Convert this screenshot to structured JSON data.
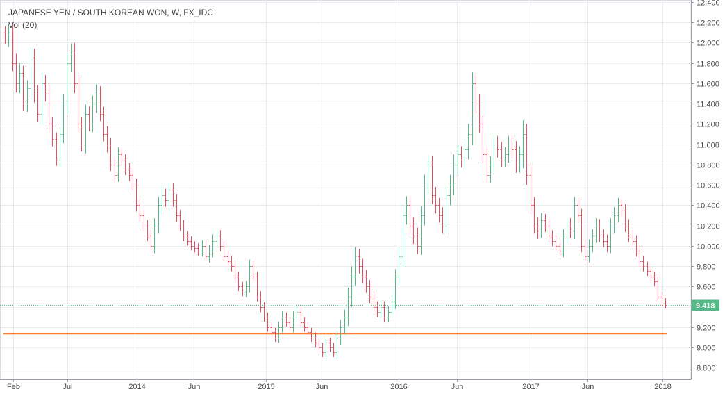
{
  "chart_data": {
    "type": "ohlc",
    "title": "JAPANESE YEN / SOUTH KOREAN WON, W, FX_IDC",
    "indicator_label": "Vol (20)",
    "last_price_label": "9.418",
    "y_ticks": [
      "12.400",
      "12.200",
      "12.000",
      "11.800",
      "11.600",
      "11.400",
      "11.200",
      "11.000",
      "10.800",
      "10.600",
      "10.400",
      "10.200",
      "10.000",
      "9.800",
      "9.600",
      "9.400",
      "9.200",
      "9.000",
      "8.800"
    ],
    "x_ticks": [
      "Feb",
      "Jul",
      "2014",
      "Jun",
      "2015",
      "Jun",
      "2016",
      "Jun",
      "2017",
      "Jun",
      "2018"
    ],
    "ylim": [
      8.7,
      12.42
    ],
    "last_price": 9.418,
    "volume_line_level": 9.14,
    "grid": true,
    "colors": {
      "up": "#53b987",
      "down": "#eb4d5c",
      "volume_line": "#ff7a2f",
      "last_price": "#53b987",
      "grid": "#e8eaf0",
      "axis_text": "#4a4a4a"
    },
    "series": [
      {
        "start": "2013-01-07",
        "values": [
          12.05,
          12.1,
          11.8,
          11.6,
          11.7,
          11.4,
          11.55,
          11.85,
          11.5,
          11.3,
          11.6,
          11.5,
          11.2,
          11.05,
          10.85,
          11.1,
          11.4,
          11.8,
          11.9,
          11.6,
          11.2,
          11.0,
          11.3,
          11.2,
          11.4,
          11.5,
          11.3,
          11.1,
          11.0,
          10.8,
          10.7,
          10.9,
          10.85,
          10.75,
          10.7,
          10.6,
          10.4,
          10.3,
          10.2,
          10.1,
          10.0,
          10.2,
          10.4,
          10.5,
          10.45,
          10.55,
          10.45,
          10.3,
          10.2,
          10.1,
          10.05,
          10.0,
          9.98,
          9.95,
          10.0,
          9.9,
          9.95,
          10.05,
          10.1,
          10.0,
          9.9,
          9.85,
          9.8,
          9.7,
          9.6,
          9.55,
          9.6,
          9.8,
          9.7,
          9.5,
          9.4,
          9.3,
          9.2,
          9.15,
          9.1,
          9.2,
          9.3,
          9.25,
          9.2,
          9.3,
          9.35,
          9.25,
          9.2,
          9.15,
          9.1,
          9.05,
          9.0,
          8.95,
          9.05,
          9.0,
          8.95,
          9.1,
          9.2,
          9.3,
          9.5,
          9.7,
          9.9,
          9.8,
          9.7,
          9.6,
          9.5,
          9.4,
          9.35,
          9.4,
          9.3,
          9.35,
          9.45,
          9.7,
          9.9,
          10.3,
          10.4,
          10.2,
          10.1,
          10.0,
          10.3,
          10.6,
          10.8,
          10.5,
          10.4,
          10.3,
          10.2,
          10.5,
          10.6,
          10.8,
          10.9,
          10.85,
          10.95,
          11.1,
          11.6,
          11.4,
          11.2,
          10.9,
          10.7,
          10.8,
          11.0,
          10.95,
          10.85,
          10.9,
          11.0,
          10.95,
          10.8,
          10.9,
          11.1,
          10.7,
          10.4,
          10.2,
          10.15,
          10.25,
          10.2,
          10.1,
          10.05,
          10.0,
          9.95,
          10.1,
          10.2,
          10.15,
          10.4,
          10.3,
          10.0,
          9.9,
          10.0,
          10.1,
          10.2,
          10.1,
          10.05,
          10.0,
          10.2,
          10.3,
          10.4,
          10.35,
          10.2,
          10.1,
          10.05,
          9.95,
          9.85,
          9.8,
          9.75,
          9.7,
          9.65,
          9.5,
          9.45,
          9.42
        ],
        "spread": [
          0.14,
          0.2,
          0.18,
          0.2,
          0.22,
          0.16,
          0.18,
          0.24,
          0.2,
          0.18,
          0.22,
          0.18,
          0.18,
          0.16,
          0.14,
          0.16,
          0.2,
          0.22,
          0.2,
          0.22,
          0.18,
          0.16,
          0.2,
          0.16,
          0.18,
          0.2,
          0.16,
          0.16,
          0.18,
          0.14,
          0.16,
          0.16,
          0.14,
          0.12,
          0.14,
          0.12,
          0.14,
          0.14,
          0.12,
          0.12,
          0.12,
          0.16,
          0.18,
          0.2,
          0.14,
          0.14,
          0.14,
          0.14,
          0.12,
          0.12,
          0.1,
          0.1,
          0.1,
          0.1,
          0.12,
          0.12,
          0.14,
          0.14,
          0.12,
          0.12,
          0.1,
          0.1,
          0.12,
          0.12,
          0.1,
          0.1,
          0.12,
          0.14,
          0.12,
          0.1,
          0.12,
          0.1,
          0.1,
          0.1,
          0.1,
          0.12,
          0.12,
          0.1,
          0.1,
          0.12,
          0.12,
          0.1,
          0.1,
          0.1,
          0.1,
          0.1,
          0.1,
          0.1,
          0.1,
          0.1,
          0.1,
          0.14,
          0.16,
          0.16,
          0.2,
          0.22,
          0.2,
          0.16,
          0.16,
          0.14,
          0.14,
          0.12,
          0.12,
          0.12,
          0.12,
          0.12,
          0.14,
          0.16,
          0.2,
          0.22,
          0.2,
          0.2,
          0.18,
          0.18,
          0.2,
          0.22,
          0.2,
          0.2,
          0.18,
          0.16,
          0.18,
          0.2,
          0.22,
          0.22,
          0.2,
          0.18,
          0.2,
          0.22,
          0.24,
          0.22,
          0.2,
          0.18,
          0.18,
          0.18,
          0.2,
          0.18,
          0.16,
          0.16,
          0.18,
          0.2,
          0.18,
          0.18,
          0.3,
          0.22,
          0.2,
          0.18,
          0.18,
          0.16,
          0.14,
          0.14,
          0.12,
          0.12,
          0.12,
          0.14,
          0.16,
          0.16,
          0.18,
          0.16,
          0.14,
          0.14,
          0.14,
          0.14,
          0.16,
          0.14,
          0.14,
          0.14,
          0.16,
          0.18,
          0.16,
          0.14,
          0.14,
          0.14,
          0.12,
          0.12,
          0.12,
          0.12,
          0.1,
          0.1,
          0.1,
          0.1,
          0.1,
          0.08
        ]
      }
    ]
  }
}
